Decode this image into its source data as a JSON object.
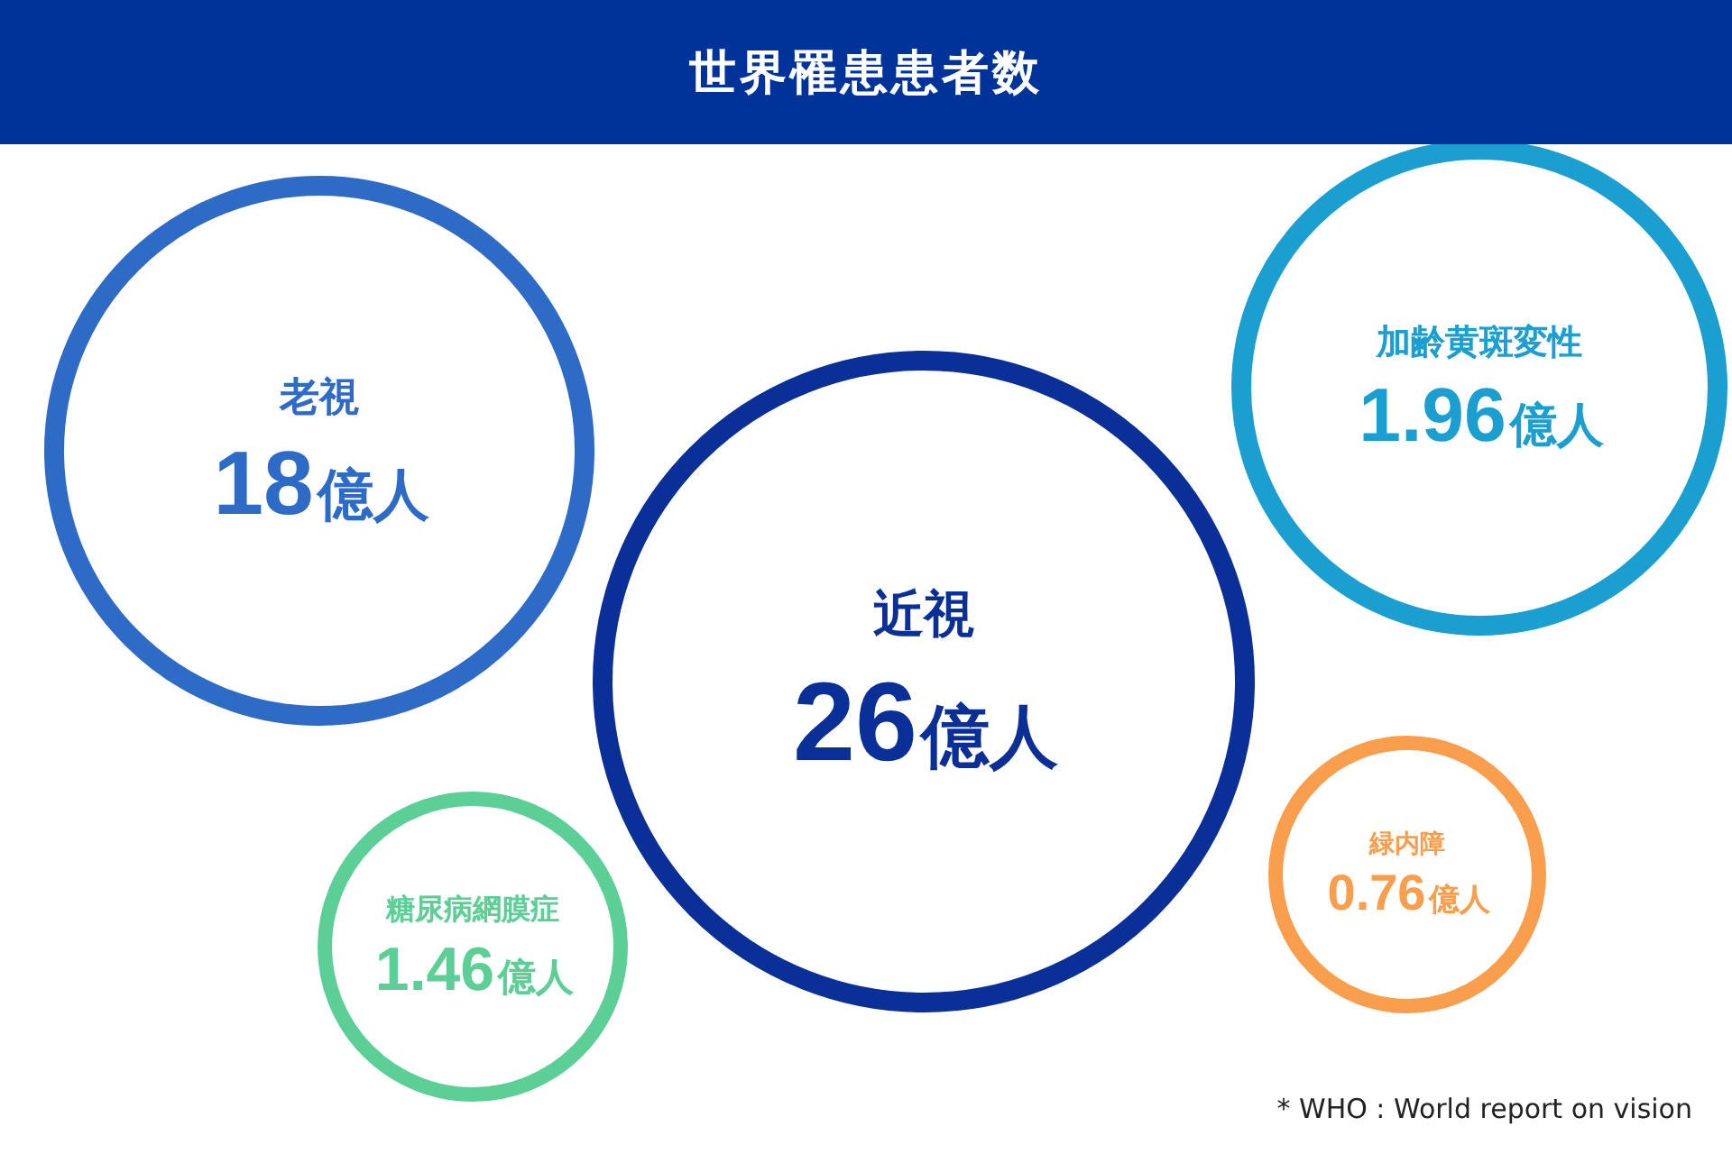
{
  "chart_data": {
    "type": "other",
    "title": "世界罹患患者数",
    "categories": [
      "老視",
      "近視",
      "加齢黄斑変性",
      "糖尿病網膜症",
      "緑内障"
    ],
    "values": [
      18,
      26,
      1.96,
      1.46,
      0.76
    ],
    "value_labels": [
      "18億人",
      "26億人",
      "1.96億人",
      "1.46億人",
      "0.76億人"
    ],
    "colors": [
      "#2e6bc6",
      "#0a2f96",
      "#1a9fd0",
      "#5ccf96",
      "#f99e4c"
    ],
    "annotations": [
      "* WHO : World report on vision"
    ]
  }
}
